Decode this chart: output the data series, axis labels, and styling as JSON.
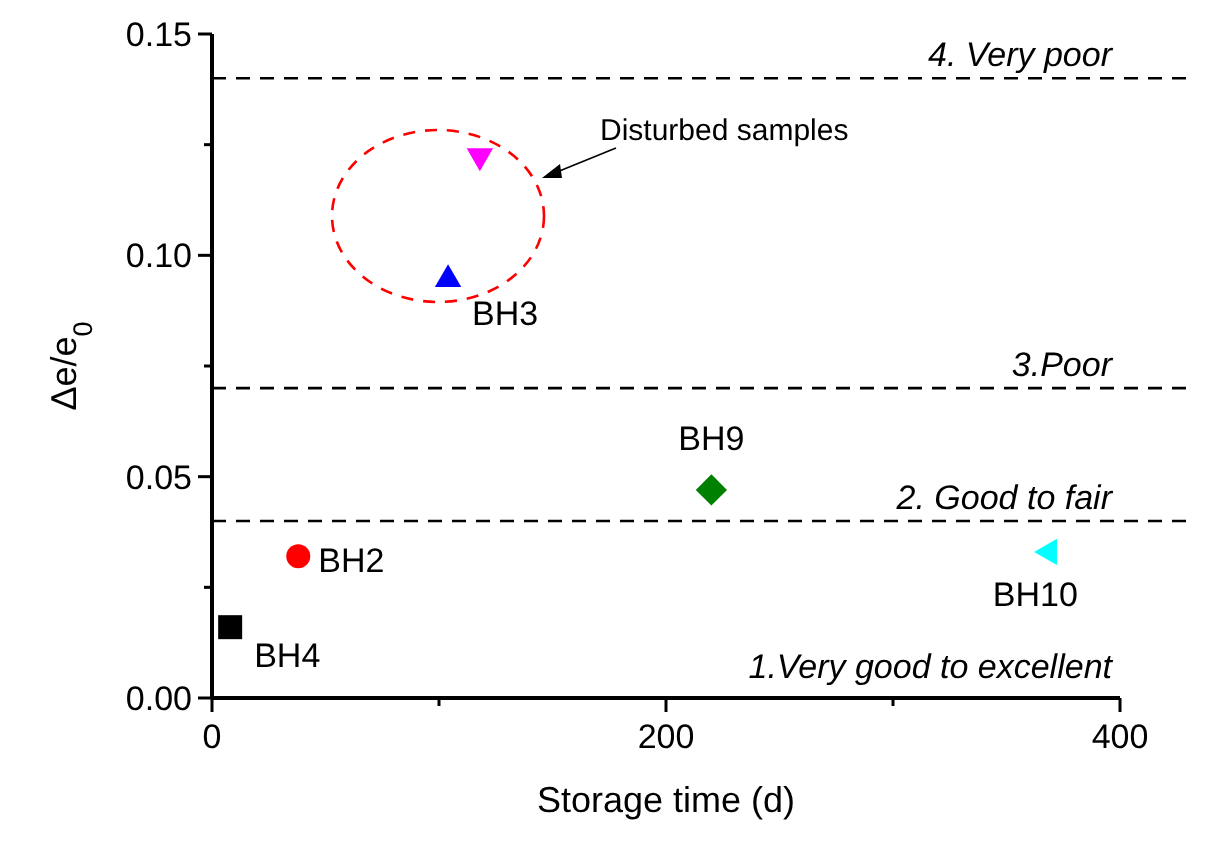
{
  "chart_data": {
    "type": "scatter",
    "xlabel": "Storage time (d)",
    "ylabel": "Δe/e$_{0}$",
    "xlim": [
      0,
      400
    ],
    "xticks": [
      0,
      {
        "value": 100,
        "label": null
      },
      200,
      {
        "value": 300,
        "label": null
      },
      400
    ],
    "ylim": [
      0,
      0.15
    ],
    "yticks": [
      "0.00",
      {
        "value": 0.025,
        "label": null
      },
      {
        "value": 0.05,
        "label": "0.05"
      },
      {
        "value": 0.075,
        "label": null
      },
      {
        "value": 0.1,
        "label": "0.10"
      },
      {
        "value": 0.125,
        "label": null
      },
      {
        "value": 0.15,
        "label": "0.15"
      }
    ],
    "series": [
      {
        "name": "BH4",
        "color": "#000000",
        "marker": "square",
        "x": [
          8
        ],
        "values": [
          0.016
        ]
      },
      {
        "name": "BH2",
        "color": "#ff0000",
        "marker": "circle",
        "x": [
          38
        ],
        "values": [
          0.032
        ]
      },
      {
        "name": "BH3",
        "color": "#0000ff",
        "marker": "triangle",
        "x": [
          104
        ],
        "values": [
          0.095
        ]
      },
      {
        "color": "#ff00ff",
        "marker": "triangle-down",
        "x": [
          118
        ],
        "values": [
          0.122
        ]
      },
      {
        "name": "BH9",
        "color": "#008000",
        "marker": "diamond",
        "x": [
          220
        ],
        "values": [
          0.047
        ]
      },
      {
        "name": "BH10",
        "color": "#00ffff",
        "marker": "triangle-left",
        "x": [
          368
        ],
        "values": [
          0.033
        ]
      }
    ],
    "ref_lines": [
      {
        "axis": "y",
        "value": 0.14,
        "label": "4. Very poor",
        "color": "#000000",
        "line_style": "dashed"
      },
      {
        "axis": "y",
        "value": 0.07,
        "label": "3.Poor",
        "color": "#000000",
        "line_style": "dashed"
      },
      {
        "axis": "y",
        "value": 0.04,
        "label": "2. Good to fair",
        "color": "#000000",
        "line_style": "dashed"
      }
    ],
    "annotations": [
      "1.Very good to excellent",
      "Disturbed samples"
    ]
  }
}
